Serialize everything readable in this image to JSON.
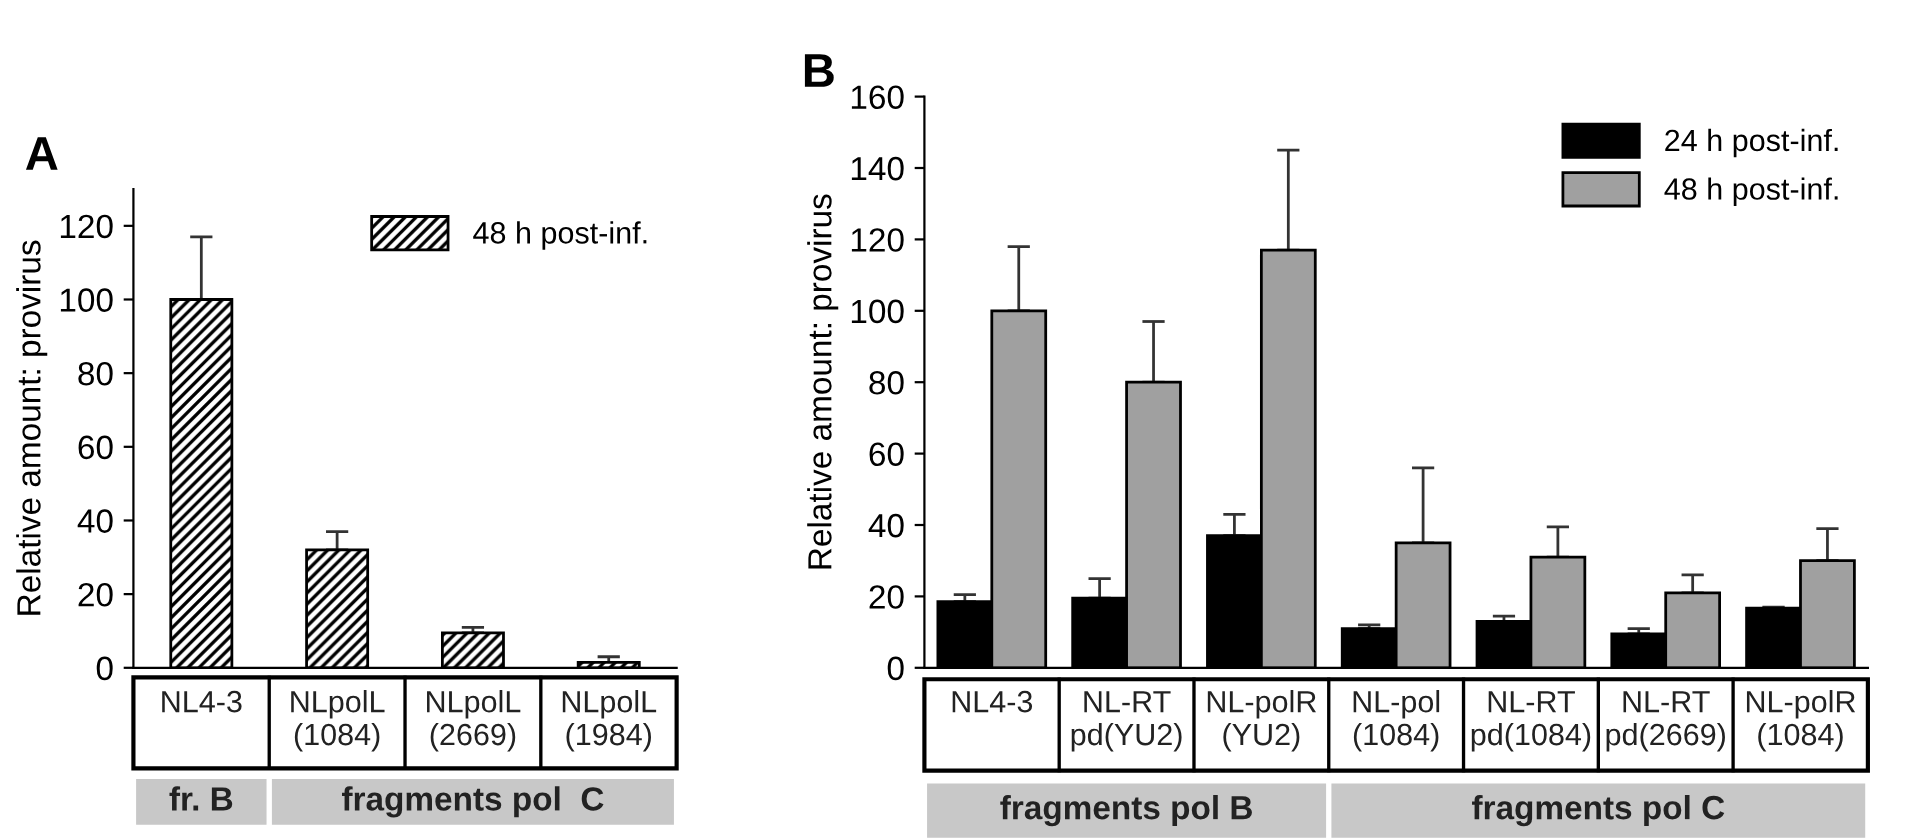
{
  "chart_data": [
    {
      "type": "bar",
      "title": "A",
      "ylabel": "Relative amount: provirus",
      "categories": [
        "NL4-3",
        "NLpolL\n(1084)",
        "NLpolL\n(2669)",
        "NLpolL\n(1984)"
      ],
      "series": [
        {
          "name": "48 h post-inf.",
          "color": "#000000",
          "values": [
            100,
            32,
            9.5,
            1.5
          ],
          "errors": [
            [
              100,
              117
            ],
            [
              32,
              37
            ],
            [
              9.5,
              11
            ],
            [
              1.5,
              3
            ]
          ]
        }
      ],
      "ylim": [
        0,
        130
      ],
      "yticks": [
        0,
        20,
        40,
        60,
        80,
        100,
        120
      ],
      "legend": "top right",
      "grid": false,
      "annotations": [
        "fr. B",
        "fragments pol  C"
      ]
    },
    {
      "type": "bar",
      "title": "B",
      "ylabel": "Relative amount: provirus",
      "categories": [
        "NL4-3",
        "NL-RT\npd(YU2)",
        "NL-polR\n(YU2)",
        "NL-pol\n(1084)",
        "NL-RT\npd(1084)",
        "NL-RT\npd(2669)",
        "NL-polR\n(1084)"
      ],
      "series": [
        {
          "name": "24 h post-inf.",
          "color": "#000000",
          "values": [
            18.5,
            19.5,
            37,
            11,
            13,
            9.5,
            16.7
          ],
          "errors": [
            [
              18.5,
              20.5
            ],
            [
              19.5,
              25
            ],
            [
              37,
              43
            ],
            [
              11,
              12
            ],
            [
              13,
              14.5
            ],
            [
              9.5,
              11
            ],
            [
              16.7,
              17
            ]
          ]
        },
        {
          "name": "48 h post-inf.",
          "color": "#a0a0a0",
          "values": [
            100,
            80,
            117,
            35,
            31,
            21,
            30
          ],
          "errors": [
            [
              100,
              118
            ],
            [
              80,
              97
            ],
            [
              117,
              145
            ],
            [
              35,
              56
            ],
            [
              31,
              39.5
            ],
            [
              21,
              26
            ],
            [
              30,
              39
            ]
          ]
        }
      ],
      "ylim": [
        0,
        160
      ],
      "yticks": [
        0,
        20,
        40,
        60,
        80,
        100,
        120,
        140,
        160
      ],
      "legend": "top right",
      "grid": false,
      "annotations": [
        "fragments pol B",
        "fragments pol C"
      ]
    }
  ]
}
